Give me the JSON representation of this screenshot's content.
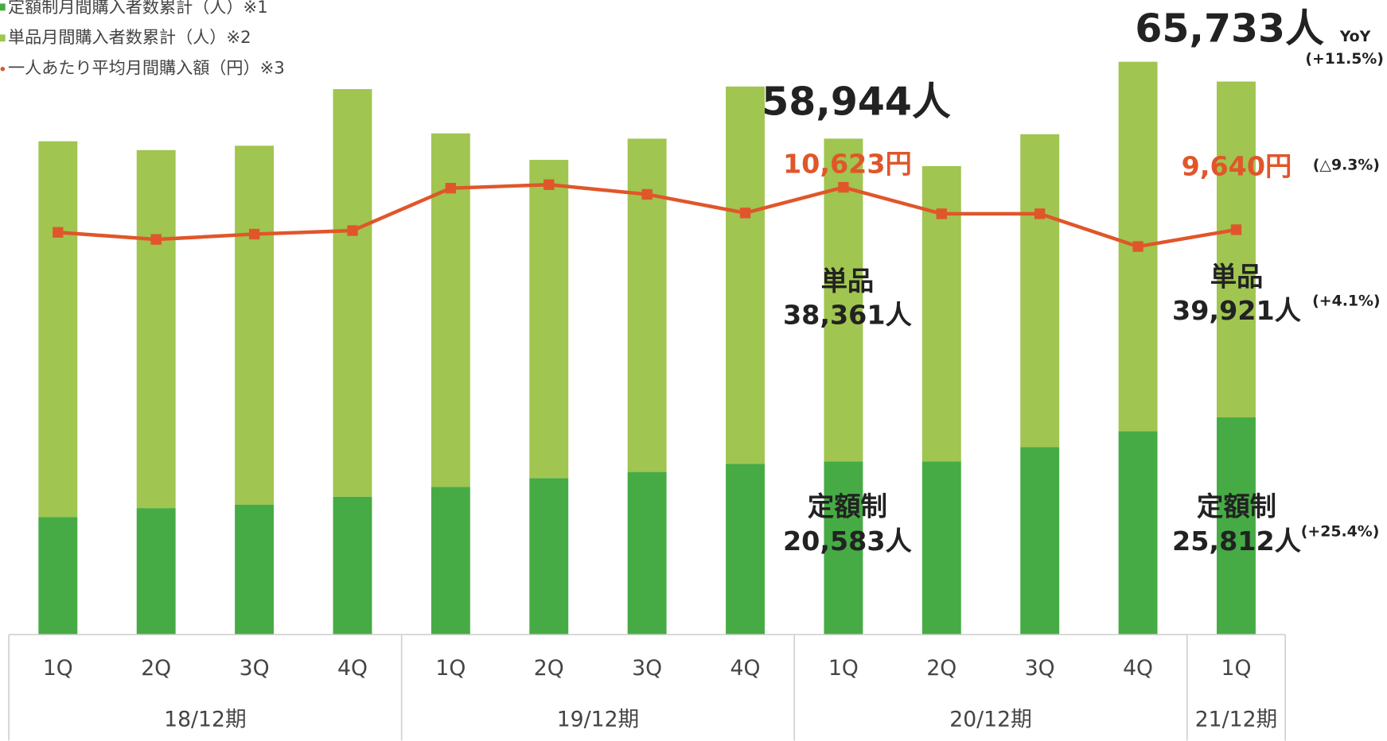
{
  "chart_data": {
    "type": "bar",
    "stacked": true,
    "categories": [
      "1Q",
      "2Q",
      "3Q",
      "4Q",
      "1Q",
      "2Q",
      "3Q",
      "4Q",
      "1Q",
      "2Q",
      "3Q",
      "4Q",
      "1Q"
    ],
    "groups": [
      {
        "label": "18/12期",
        "count": 4
      },
      {
        "label": "19/12期",
        "count": 4
      },
      {
        "label": "20/12期",
        "count": 4
      },
      {
        "label": "21/12期",
        "count": 1
      }
    ],
    "series": [
      {
        "name": "定額制月間購入者数累計（人）※1",
        "color": "#46ab44",
        "values": [
          13980,
          15030,
          15450,
          16390,
          17550,
          18600,
          19330,
          20280,
          20583,
          20590,
          22270,
          24170,
          25812
        ]
      },
      {
        "name": "単品月間購入者数累計（人）※2",
        "color": "#a0c550",
        "values": [
          44650,
          42550,
          42650,
          48440,
          42020,
          37820,
          39610,
          44860,
          38361,
          35090,
          37200,
          43910,
          39921
        ]
      },
      {
        "name": "一人あたり平均月間購入額（円）※3",
        "color": "#e0562a",
        "type": "line",
        "axis": "y2",
        "values": [
          9579,
          9415,
          9538,
          9620,
          10603,
          10684,
          10459,
          10029,
          10623,
          10009,
          10009,
          9251,
          9640
        ]
      }
    ],
    "ylim": [
      0,
      75000
    ],
    "y2lim": [
      260,
      14880
    ],
    "annotations": [
      {
        "text": "58,944人"
      },
      {
        "text": "65,733人"
      },
      {
        "text": "YoY"
      },
      {
        "text": "(+11.5%)"
      },
      {
        "text": "10,623円"
      },
      {
        "text": "9,640円"
      },
      {
        "text": "(△9.3%)"
      },
      {
        "text": "単品"
      },
      {
        "text": "38,361人"
      },
      {
        "text": "単品"
      },
      {
        "text": "39,921人"
      },
      {
        "text": "(+4.1%)"
      },
      {
        "text": "定額制"
      },
      {
        "text": "20,583人"
      },
      {
        "text": "定額制"
      },
      {
        "text": "25,812人"
      },
      {
        "text": "(+25.4%)"
      }
    ]
  }
}
